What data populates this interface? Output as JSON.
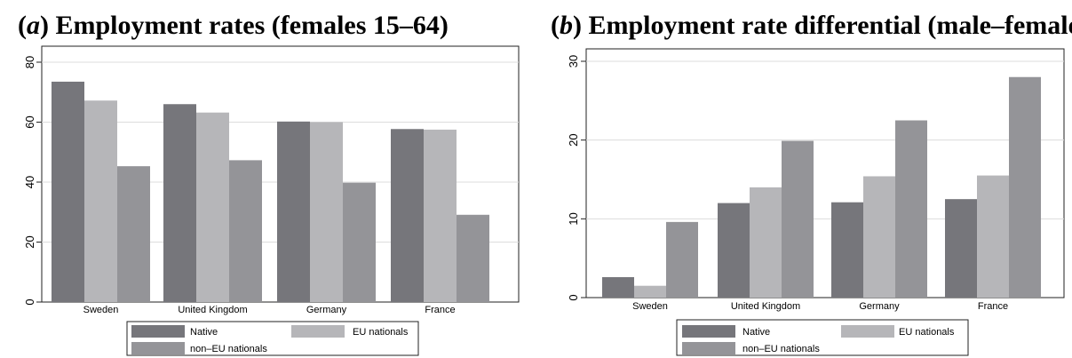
{
  "chart_data": [
    {
      "type": "bar",
      "title_prefix": "(",
      "title_letter": "a",
      "title_rest": ") Employment rates (females 15–64)",
      "categories": [
        "Sweden",
        "United Kingdom",
        "Germany",
        "France"
      ],
      "series": [
        {
          "name": "Native",
          "values": [
            73.5,
            66,
            60.2,
            57.7
          ],
          "color": "#76767b"
        },
        {
          "name": "EU nationals",
          "values": [
            67.2,
            63.2,
            60,
            57.5
          ],
          "color": "#b6b6b9"
        },
        {
          "name": "non–EU nationals",
          "values": [
            45.3,
            47.3,
            39.8,
            29.1
          ],
          "color": "#949498"
        }
      ],
      "ylim": [
        0,
        80
      ],
      "yticks": [
        0,
        20,
        40,
        60,
        80
      ],
      "grid": true,
      "legend_position": "bottom"
    },
    {
      "type": "bar",
      "title_prefix": "(",
      "title_letter": "b",
      "title_rest": ") Employment rate differential (male–female)",
      "categories": [
        "Sweden",
        "United Kingdom",
        "Germany",
        "France"
      ],
      "series": [
        {
          "name": "Native",
          "values": [
            2.6,
            12,
            12.1,
            12.5
          ],
          "color": "#76767b"
        },
        {
          "name": "EU nationals",
          "values": [
            1.5,
            14,
            15.4,
            15.5
          ],
          "color": "#b6b6b9"
        },
        {
          "name": "non–EU nationals",
          "values": [
            9.6,
            19.9,
            22.5,
            28
          ],
          "color": "#949498"
        }
      ],
      "ylim": [
        0,
        30
      ],
      "yticks": [
        0,
        10,
        20,
        30
      ],
      "grid": true,
      "legend_position": "bottom"
    }
  ]
}
